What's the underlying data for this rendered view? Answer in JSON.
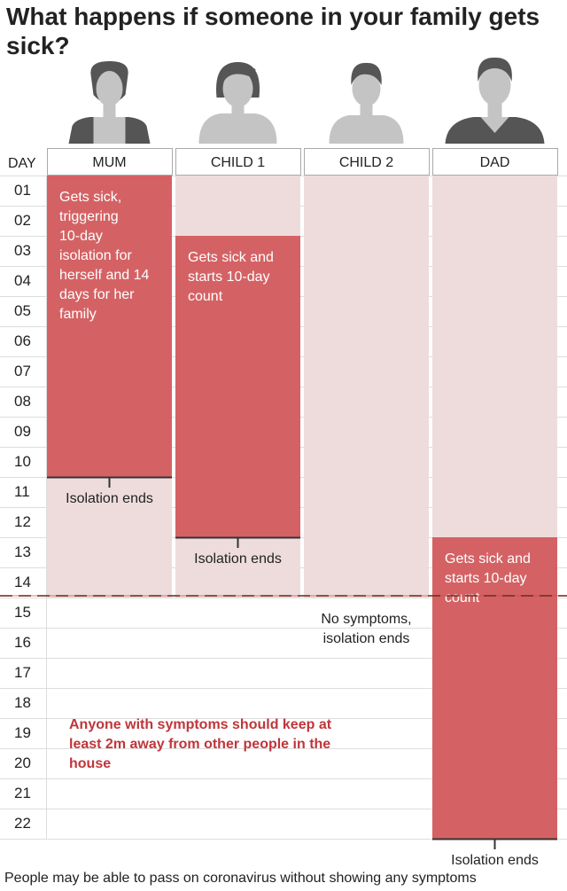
{
  "title": "What happens if someone in your family gets sick?",
  "day_header": "DAY",
  "days": [
    "01",
    "02",
    "03",
    "04",
    "05",
    "06",
    "07",
    "08",
    "09",
    "10",
    "11",
    "12",
    "13",
    "14",
    "15",
    "16",
    "17",
    "18",
    "19",
    "20",
    "21",
    "22"
  ],
  "members": [
    {
      "id": "mum",
      "label": "MUM",
      "avatar": "woman",
      "isolation_start": 1,
      "isolation_end": 14,
      "sick_start": 1,
      "sick_end": 10,
      "note": [
        "Gets sick,",
        "triggering",
        "10-day",
        "isolation for",
        "herself and 14",
        "days for her",
        "family"
      ],
      "end_label": [
        "Isolation ends"
      ]
    },
    {
      "id": "child1",
      "label": "CHILD 1",
      "avatar": "girl",
      "isolation_start": 1,
      "isolation_end": 14,
      "sick_start": 3,
      "sick_end": 12,
      "note": [
        "Gets sick and",
        "starts 10-day",
        "count"
      ],
      "end_label": [
        "Isolation ends"
      ]
    },
    {
      "id": "child2",
      "label": "CHILD 2",
      "avatar": "boy",
      "isolation_start": 1,
      "isolation_end": 14,
      "sick_start": null,
      "sick_end": null,
      "note": [],
      "end_label": [
        "No symptoms,",
        "isolation ends"
      ]
    },
    {
      "id": "dad",
      "label": "DAD",
      "avatar": "man",
      "isolation_start": 1,
      "isolation_end": 22,
      "sick_start": 13,
      "sick_end": 22,
      "note": [
        "Gets sick and",
        "starts 10-day",
        "count"
      ],
      "end_label": [
        "Isolation ends"
      ]
    }
  ],
  "advice": [
    "Anyone with symptoms should keep at",
    "least 2m away from other people in the",
    "house"
  ],
  "footnote": "People may be able to pass on coronavirus without showing any symptoms",
  "colors": {
    "sick": "#d46264",
    "isolating": "#eedcdc",
    "grid": "#dddddd",
    "avatar": "#c4c4c4",
    "avatar_dark": "#555555",
    "divider": "#d84a28",
    "advice_text": "#c0353a",
    "bar_edge": "#333333",
    "text": "#222222"
  }
}
